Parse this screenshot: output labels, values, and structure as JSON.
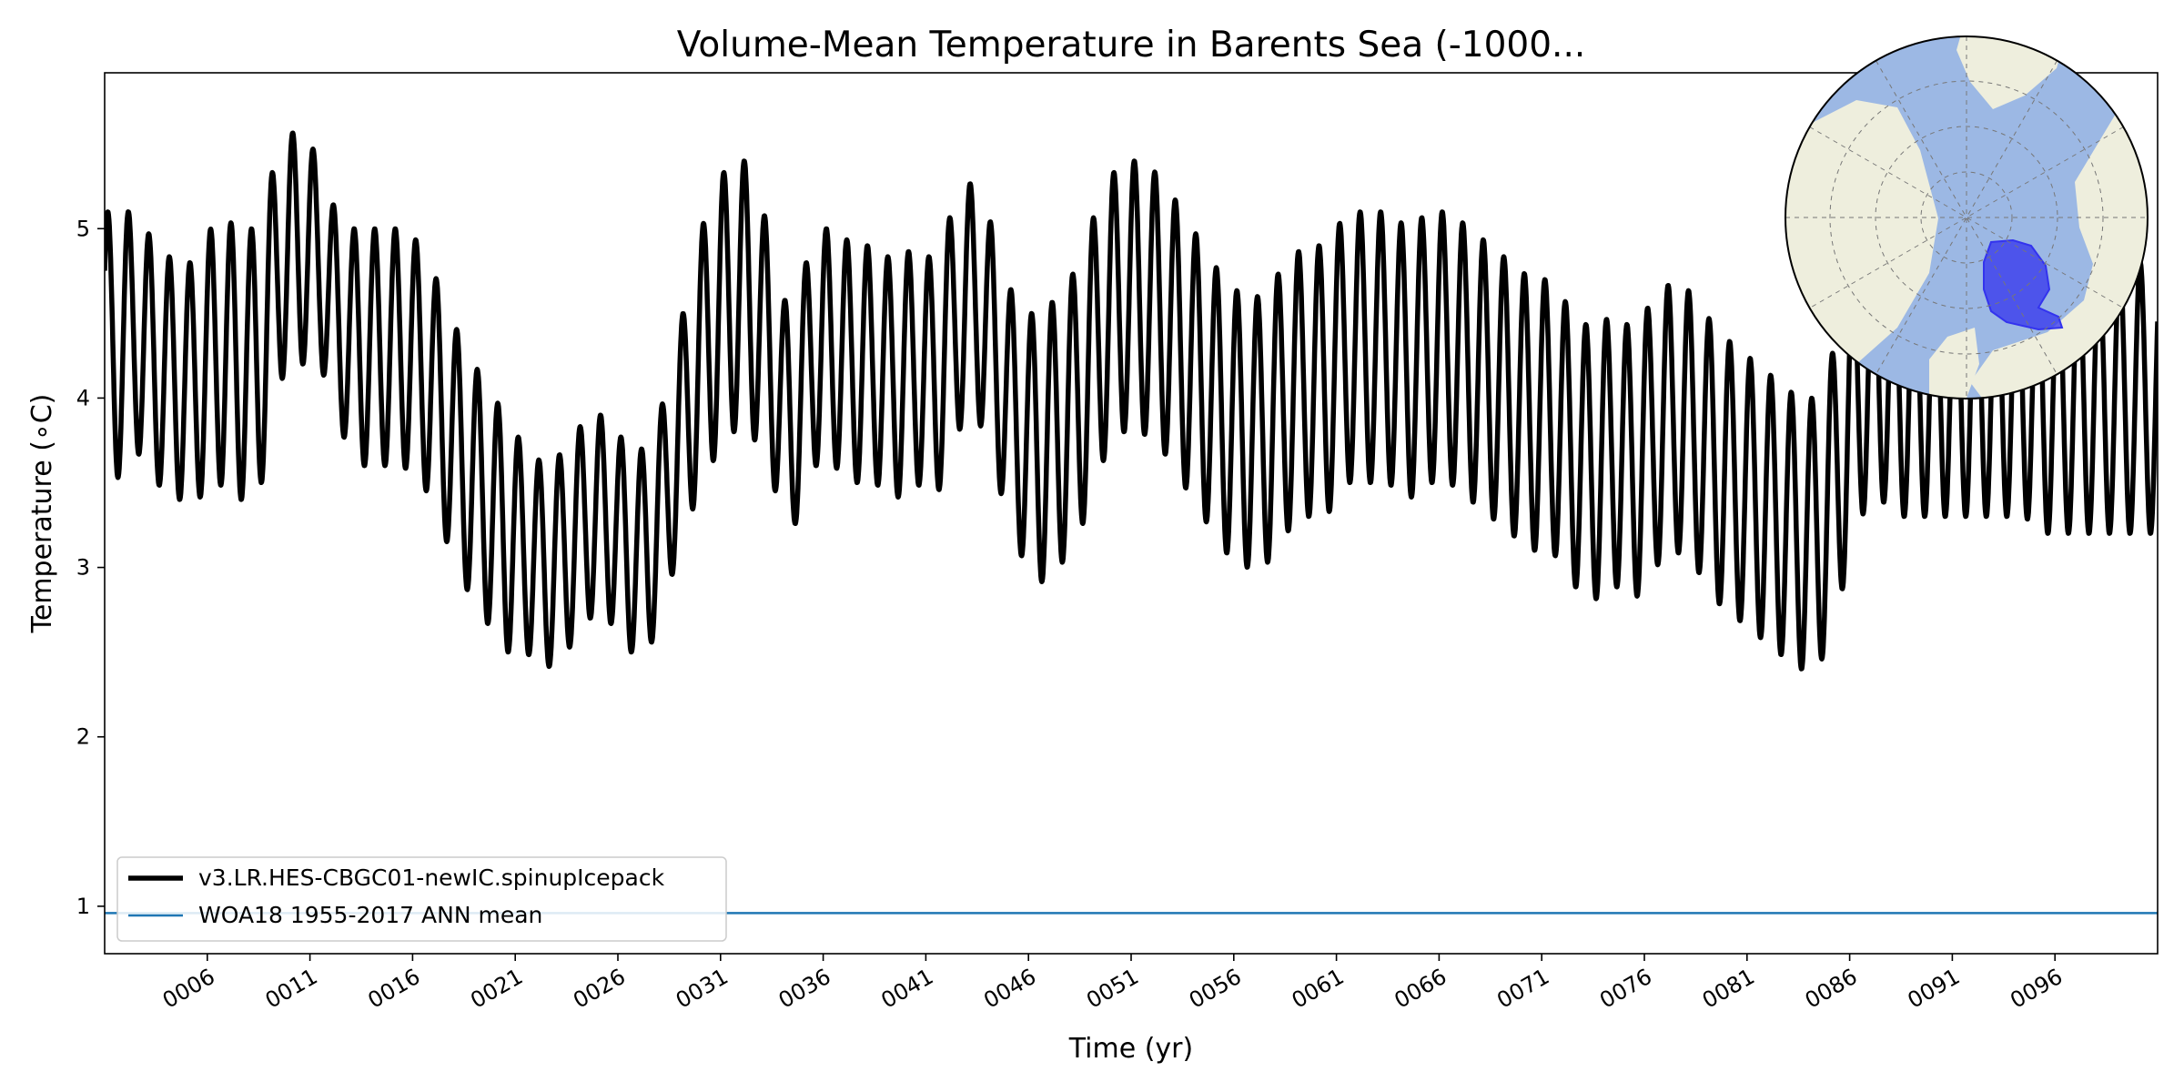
{
  "chart_data": {
    "type": "line",
    "title": "Volume-Mean Temperature in Barents Sea (-1000...",
    "xlabel": "Time (yr)",
    "ylabel": "Temperature (∘C)",
    "xlim": [
      1.0,
      101.0
    ],
    "ylim": [
      0.72,
      5.92
    ],
    "y_ticks": [
      1,
      2,
      3,
      4,
      5
    ],
    "x_tick_values": [
      6,
      11,
      16,
      21,
      26,
      31,
      36,
      41,
      46,
      51,
      56,
      61,
      66,
      71,
      76,
      81,
      86,
      91,
      96
    ],
    "x_tick_labels": [
      "0006",
      "0011",
      "0016",
      "0021",
      "0026",
      "0031",
      "0036",
      "0041",
      "0046",
      "0051",
      "0056",
      "0061",
      "0066",
      "0071",
      "0076",
      "0081",
      "0086",
      "0091",
      "0096"
    ],
    "series": [
      {
        "name": "v3.LR.HES-CBGC01-newIC.spinupIcepack",
        "color": "#000000",
        "seasonal_cycle": "monthly",
        "annual_mean": [
          4.3,
          4.4,
          4.2,
          4.1,
          4.1,
          4.3,
          4.2,
          4.2,
          4.8,
          4.9,
          4.8,
          4.4,
          4.3,
          4.3,
          4.3,
          4.2,
          3.9,
          3.6,
          3.4,
          3.2,
          3.1,
          3.0,
          3.1,
          3.3,
          3.3,
          3.1,
          3.1,
          3.5,
          4.0,
          4.4,
          4.6,
          4.6,
          4.2,
          3.8,
          4.3,
          4.3,
          4.2,
          4.2,
          4.1,
          4.2,
          4.1,
          4.5,
          4.6,
          4.2,
          3.8,
          3.7,
          3.8,
          4.0,
          4.4,
          4.6,
          4.6,
          4.5,
          4.3,
          4.1,
          3.9,
          3.8,
          3.8,
          4.0,
          4.1,
          4.1,
          4.3,
          4.3,
          4.3,
          4.2,
          4.3,
          4.3,
          4.2,
          4.1,
          4.0,
          3.9,
          3.9,
          3.7,
          3.6,
          3.7,
          3.6,
          3.8,
          3.9,
          3.8,
          3.6,
          3.5,
          3.4,
          3.3,
          3.2,
          3.2,
          3.6,
          4.1,
          4.2,
          4.1,
          4.1,
          4.1,
          4.1,
          4.1,
          4.1,
          4.1,
          4.0,
          4.0,
          4.0,
          4.0,
          4.0,
          4.0
        ],
        "annual_amplitude": [
          0.8,
          0.7,
          0.7,
          0.7,
          0.7,
          0.8,
          0.8,
          0.8,
          0.7,
          0.7,
          0.6,
          0.6,
          0.7,
          0.7,
          0.7,
          0.7,
          0.7,
          0.7,
          0.7,
          0.7,
          0.6,
          0.6,
          0.6,
          0.6,
          0.6,
          0.6,
          0.6,
          0.6,
          0.7,
          0.8,
          0.8,
          0.8,
          0.7,
          0.6,
          0.7,
          0.7,
          0.7,
          0.7,
          0.7,
          0.7,
          0.7,
          0.7,
          0.7,
          0.7,
          0.7,
          0.8,
          0.8,
          0.8,
          0.8,
          0.8,
          0.8,
          0.8,
          0.8,
          0.8,
          0.8,
          0.8,
          0.8,
          0.8,
          0.8,
          0.8,
          0.8,
          0.8,
          0.8,
          0.8,
          0.8,
          0.8,
          0.8,
          0.8,
          0.8,
          0.8,
          0.8,
          0.8,
          0.8,
          0.8,
          0.8,
          0.8,
          0.8,
          0.8,
          0.8,
          0.8,
          0.8,
          0.8,
          0.8,
          0.8,
          0.8,
          0.8,
          0.8,
          0.8,
          0.8,
          0.8,
          0.8,
          0.8,
          0.8,
          0.8,
          0.8,
          0.8,
          0.8,
          0.8,
          0.8,
          0.8
        ]
      },
      {
        "name": "WOA18 1955-2017 ANN mean",
        "color": "#1f77b4",
        "constant": 0.96
      }
    ],
    "legend_position": "lower-left",
    "inset_map": {
      "projection": "north-polar-stereographic",
      "region": "Barents Sea",
      "region_color": "#3333ee",
      "ocean_color": "#9cb8e4",
      "land_color": "#eeeedd"
    }
  }
}
